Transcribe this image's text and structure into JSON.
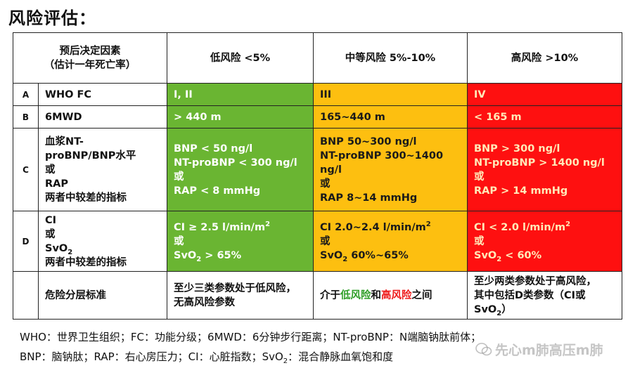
{
  "title": "风险评估：",
  "header": {
    "factor_line1": "预后决定因素",
    "factor_line2": "（估计一年死亡率）",
    "low": "低风险 <5%",
    "mid": "中等风险 5%-10%",
    "high": "高风险 >10%"
  },
  "rows": {
    "a": {
      "letter": "A",
      "factor": "WHO FC",
      "low": "I, II",
      "mid": "III",
      "high": "IV"
    },
    "b": {
      "letter": "B",
      "factor": "6MWD",
      "low": "> 440 m",
      "mid": "165~440 m",
      "high": "< 165 m"
    },
    "c": {
      "letter": "C",
      "factor": [
        "血浆NT-",
        "proBNP/BNP水平",
        "或",
        "RAP",
        "两者中较差的指标"
      ],
      "low": [
        "BNP < 50 ng/l",
        "NT-proBNP < 300 ng/l",
        "或",
        "RAP < 8 mmHg"
      ],
      "mid": [
        "BNP 50~300 ng/l",
        "NT-proBNP 300~1400",
        "ng/l",
        "或",
        "RAP 8~14 mmHg"
      ],
      "high": [
        "BNP > 300 ng/l",
        "NT-proBNP > 1400 ng/l",
        "或",
        "RAP > 14 mmHg"
      ]
    },
    "d": {
      "letter": "D",
      "factor": {
        "l1": "CI",
        "l2": "或",
        "l3_base": "SvO",
        "l3_sub": "2",
        "l4": "两者中较差的指标"
      },
      "low": {
        "ci_text": "CI ≥ 2.5 l/min/m",
        "ci_sup": "2",
        "or": "或",
        "sv_base": "SvO",
        "sv_sub": "2",
        "sv_rest": " > 65%"
      },
      "mid": {
        "ci_text": "CI 2.0~2.4 l/min/m",
        "ci_sup": "2",
        "or": "或",
        "sv_base": "SvO",
        "sv_sub": "2",
        "sv_rest": " 60%~65%"
      },
      "high": {
        "ci_text": "CI < 2.0 l/min/m",
        "ci_sup": "2",
        "or": "或",
        "sv_base": "SvO",
        "sv_sub": "2",
        "sv_rest": " < 60%"
      }
    },
    "e": {
      "factor": "危险分层标准",
      "low": [
        "至少三类参数处于低风险，",
        "无高风险参数"
      ],
      "mid": {
        "pre": "介于",
        "low_word": "低风险",
        "and": "和",
        "high_word": "高风险",
        "post": "之间"
      },
      "high": {
        "l1": "至少两类参数处于高风险，",
        "l2": "其中包括D类参数（CI或",
        "l3_base": "SvO",
        "l3_sub": "2",
        "l3_rest": "）"
      }
    }
  },
  "footnote": {
    "line1": "WHO：世界卫生组织；FC：功能分级；6MWD：6分钟步行距离；NT-proBNP：N端脑钠肽前体；",
    "line2_pre": "BNP：脑钠肽；RAP：右心房压力；CI：心脏指数；SvO",
    "line2_sub": "2",
    "line2_post": "：混合静脉血氧饱和度"
  },
  "watermark": "先心m肺高压m肺",
  "colors": {
    "low": "#6ab532",
    "mid": "#fdbf10",
    "high": "#fe1010"
  }
}
